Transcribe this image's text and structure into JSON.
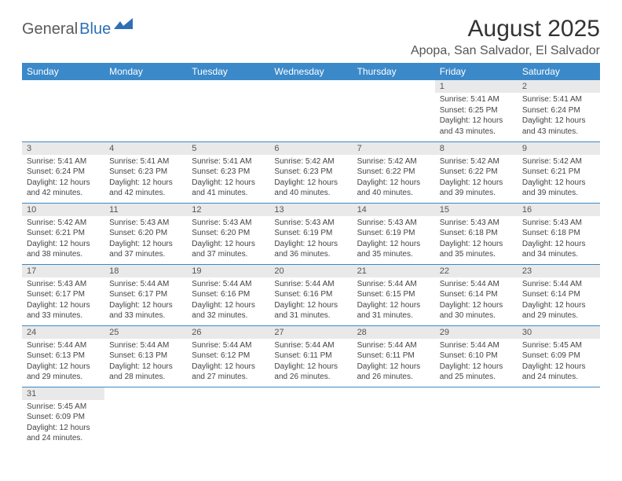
{
  "logo": {
    "text1": "General",
    "text2": "Blue"
  },
  "title": "August 2025",
  "location": "Apopa, San Salvador, El Salvador",
  "colors": {
    "header_bg": "#3b89c9",
    "header_text": "#ffffff",
    "daynum_bg": "#e9e9e9",
    "border": "#3b89c9",
    "logo_blue": "#2e6fb5",
    "logo_gray": "#5a5a5a"
  },
  "day_headers": [
    "Sunday",
    "Monday",
    "Tuesday",
    "Wednesday",
    "Thursday",
    "Friday",
    "Saturday"
  ],
  "weeks": [
    [
      null,
      null,
      null,
      null,
      null,
      {
        "n": "1",
        "sr": "5:41 AM",
        "ss": "6:25 PM",
        "dl": "12 hours and 43 minutes."
      },
      {
        "n": "2",
        "sr": "5:41 AM",
        "ss": "6:24 PM",
        "dl": "12 hours and 43 minutes."
      }
    ],
    [
      {
        "n": "3",
        "sr": "5:41 AM",
        "ss": "6:24 PM",
        "dl": "12 hours and 42 minutes."
      },
      {
        "n": "4",
        "sr": "5:41 AM",
        "ss": "6:23 PM",
        "dl": "12 hours and 42 minutes."
      },
      {
        "n": "5",
        "sr": "5:41 AM",
        "ss": "6:23 PM",
        "dl": "12 hours and 41 minutes."
      },
      {
        "n": "6",
        "sr": "5:42 AM",
        "ss": "6:23 PM",
        "dl": "12 hours and 40 minutes."
      },
      {
        "n": "7",
        "sr": "5:42 AM",
        "ss": "6:22 PM",
        "dl": "12 hours and 40 minutes."
      },
      {
        "n": "8",
        "sr": "5:42 AM",
        "ss": "6:22 PM",
        "dl": "12 hours and 39 minutes."
      },
      {
        "n": "9",
        "sr": "5:42 AM",
        "ss": "6:21 PM",
        "dl": "12 hours and 39 minutes."
      }
    ],
    [
      {
        "n": "10",
        "sr": "5:42 AM",
        "ss": "6:21 PM",
        "dl": "12 hours and 38 minutes."
      },
      {
        "n": "11",
        "sr": "5:43 AM",
        "ss": "6:20 PM",
        "dl": "12 hours and 37 minutes."
      },
      {
        "n": "12",
        "sr": "5:43 AM",
        "ss": "6:20 PM",
        "dl": "12 hours and 37 minutes."
      },
      {
        "n": "13",
        "sr": "5:43 AM",
        "ss": "6:19 PM",
        "dl": "12 hours and 36 minutes."
      },
      {
        "n": "14",
        "sr": "5:43 AM",
        "ss": "6:19 PM",
        "dl": "12 hours and 35 minutes."
      },
      {
        "n": "15",
        "sr": "5:43 AM",
        "ss": "6:18 PM",
        "dl": "12 hours and 35 minutes."
      },
      {
        "n": "16",
        "sr": "5:43 AM",
        "ss": "6:18 PM",
        "dl": "12 hours and 34 minutes."
      }
    ],
    [
      {
        "n": "17",
        "sr": "5:43 AM",
        "ss": "6:17 PM",
        "dl": "12 hours and 33 minutes."
      },
      {
        "n": "18",
        "sr": "5:44 AM",
        "ss": "6:17 PM",
        "dl": "12 hours and 33 minutes."
      },
      {
        "n": "19",
        "sr": "5:44 AM",
        "ss": "6:16 PM",
        "dl": "12 hours and 32 minutes."
      },
      {
        "n": "20",
        "sr": "5:44 AM",
        "ss": "6:16 PM",
        "dl": "12 hours and 31 minutes."
      },
      {
        "n": "21",
        "sr": "5:44 AM",
        "ss": "6:15 PM",
        "dl": "12 hours and 31 minutes."
      },
      {
        "n": "22",
        "sr": "5:44 AM",
        "ss": "6:14 PM",
        "dl": "12 hours and 30 minutes."
      },
      {
        "n": "23",
        "sr": "5:44 AM",
        "ss": "6:14 PM",
        "dl": "12 hours and 29 minutes."
      }
    ],
    [
      {
        "n": "24",
        "sr": "5:44 AM",
        "ss": "6:13 PM",
        "dl": "12 hours and 29 minutes."
      },
      {
        "n": "25",
        "sr": "5:44 AM",
        "ss": "6:13 PM",
        "dl": "12 hours and 28 minutes."
      },
      {
        "n": "26",
        "sr": "5:44 AM",
        "ss": "6:12 PM",
        "dl": "12 hours and 27 minutes."
      },
      {
        "n": "27",
        "sr": "5:44 AM",
        "ss": "6:11 PM",
        "dl": "12 hours and 26 minutes."
      },
      {
        "n": "28",
        "sr": "5:44 AM",
        "ss": "6:11 PM",
        "dl": "12 hours and 26 minutes."
      },
      {
        "n": "29",
        "sr": "5:44 AM",
        "ss": "6:10 PM",
        "dl": "12 hours and 25 minutes."
      },
      {
        "n": "30",
        "sr": "5:45 AM",
        "ss": "6:09 PM",
        "dl": "12 hours and 24 minutes."
      }
    ],
    [
      {
        "n": "31",
        "sr": "5:45 AM",
        "ss": "6:09 PM",
        "dl": "12 hours and 24 minutes."
      },
      null,
      null,
      null,
      null,
      null,
      null
    ]
  ],
  "labels": {
    "sunrise": "Sunrise:",
    "sunset": "Sunset:",
    "daylight": "Daylight:"
  }
}
